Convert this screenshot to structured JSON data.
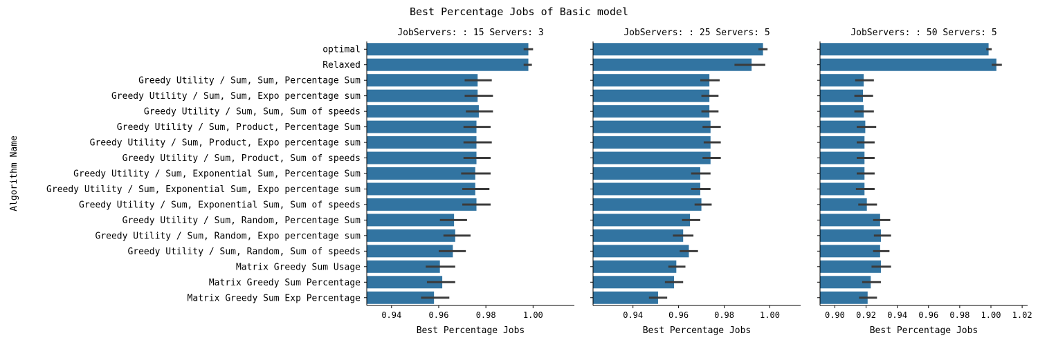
{
  "suptitle": "Best Percentage Jobs of Basic model",
  "ylabel": "Algorithm Name",
  "colors": {
    "bar": "#3274a1",
    "errorbar": "#3b3b3b",
    "axis": "#000000"
  },
  "chart_data": [
    {
      "type": "bar",
      "orientation": "horizontal",
      "title": "JobServers: : 15 Servers: 3",
      "xlabel": "Best Percentage Jobs",
      "xlim": [
        0.9295,
        1.0175
      ],
      "xticks": [
        0.94,
        0.96,
        0.98,
        1.0
      ],
      "xtick_labels": [
        "0.94",
        "0.96",
        "0.98",
        "1.00"
      ],
      "categories": [
        "optimal",
        "Relaxed",
        "Greedy Utility / Sum, Sum, Percentage Sum",
        "Greedy Utility / Sum, Sum, Expo percentage sum",
        "Greedy Utility / Sum, Sum, Sum of speeds",
        "Greedy Utility / Sum, Product, Percentage Sum",
        "Greedy Utility / Sum, Product, Expo percentage sum",
        "Greedy Utility / Sum, Product, Sum of speeds",
        "Greedy Utility / Sum, Exponential Sum, Percentage Sum",
        "Greedy Utility / Sum, Exponential Sum, Expo percentage sum",
        "Greedy Utility / Sum, Exponential Sum, Sum of speeds",
        "Greedy Utility / Sum, Random, Percentage Sum",
        "Greedy Utility / Sum, Random, Expo percentage sum",
        "Greedy Utility / Sum, Random, Sum of speeds",
        "Matrix Greedy Sum Usage",
        "Matrix Greedy Sum Percentage",
        "Matrix Greedy Sum Exp Percentage"
      ],
      "values": [
        0.998,
        0.998,
        0.9765,
        0.9765,
        0.977,
        0.976,
        0.976,
        0.976,
        0.9755,
        0.9755,
        0.976,
        0.9665,
        0.967,
        0.966,
        0.9605,
        0.9615,
        0.958
      ],
      "ci_low": [
        0.996,
        0.996,
        0.971,
        0.971,
        0.9715,
        0.9705,
        0.9705,
        0.9705,
        0.9695,
        0.97,
        0.97,
        0.9605,
        0.962,
        0.96,
        0.9545,
        0.955,
        0.9525
      ],
      "ci_high": [
        1.0,
        0.9995,
        0.9825,
        0.983,
        0.983,
        0.982,
        0.9825,
        0.982,
        0.982,
        0.9815,
        0.982,
        0.972,
        0.9735,
        0.9715,
        0.967,
        0.967,
        0.9645
      ]
    },
    {
      "type": "bar",
      "orientation": "horizontal",
      "title": "JobServers: : 25 Servers: 5",
      "xlabel": "Best Percentage Jobs",
      "xlim": [
        0.9225,
        1.0135
      ],
      "xticks": [
        0.94,
        0.96,
        0.98,
        1.0
      ],
      "xtick_labels": [
        "0.94",
        "0.96",
        "0.98",
        "1.00"
      ],
      "values": [
        0.997,
        0.992,
        0.9735,
        0.9735,
        0.9735,
        0.974,
        0.974,
        0.974,
        0.9695,
        0.9695,
        0.97,
        0.965,
        0.962,
        0.9645,
        0.959,
        0.958,
        0.951
      ],
      "ci_low": [
        0.995,
        0.9845,
        0.9695,
        0.97,
        0.97,
        0.9705,
        0.971,
        0.9705,
        0.9655,
        0.9655,
        0.967,
        0.9615,
        0.9575,
        0.9605,
        0.9555,
        0.954,
        0.947
      ],
      "ci_high": [
        0.999,
        0.998,
        0.978,
        0.9775,
        0.9775,
        0.9785,
        0.9785,
        0.9785,
        0.974,
        0.974,
        0.9745,
        0.9695,
        0.9665,
        0.9685,
        0.963,
        0.962,
        0.955
      ]
    },
    {
      "type": "bar",
      "orientation": "horizontal",
      "title": "JobServers: : 50 Servers: 5",
      "xlabel": "Best Percentage Jobs",
      "xlim": [
        0.8905,
        1.0235
      ],
      "xticks": [
        0.9,
        0.92,
        0.94,
        0.96,
        0.98,
        1.0,
        1.02
      ],
      "xtick_labels": [
        "0.90",
        "0.92",
        "0.94",
        "0.96",
        "0.98",
        "1.00",
        "1.02"
      ],
      "values": [
        0.9985,
        1.0035,
        0.9185,
        0.918,
        0.9185,
        0.9195,
        0.919,
        0.919,
        0.919,
        0.919,
        0.9205,
        0.929,
        0.9295,
        0.929,
        0.9295,
        0.923,
        0.921
      ],
      "ci_low": [
        0.997,
        1.0005,
        0.913,
        0.9125,
        0.9125,
        0.914,
        0.914,
        0.914,
        0.914,
        0.9135,
        0.915,
        0.9245,
        0.925,
        0.9245,
        0.9235,
        0.9175,
        0.9155
      ],
      "ci_high": [
        1.0005,
        1.007,
        0.925,
        0.9245,
        0.925,
        0.9265,
        0.9255,
        0.9255,
        0.9255,
        0.9255,
        0.927,
        0.9355,
        0.936,
        0.935,
        0.936,
        0.9295,
        0.927
      ]
    }
  ]
}
